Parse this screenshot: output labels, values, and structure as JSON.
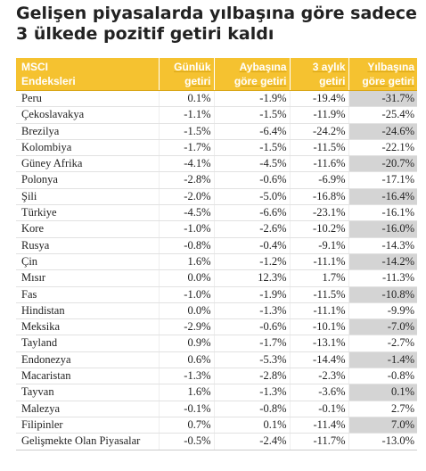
{
  "title": {
    "line1": "Gelişen piyasalarda yılbaşına göre sadece",
    "line2": "3 ülkede pozitif getiri kaldı"
  },
  "table": {
    "headers": [
      [
        "MSCI",
        "Endeksleri"
      ],
      [
        "Günlük",
        "getiri"
      ],
      [
        "Aybaşına",
        "göre getiri"
      ],
      [
        "3 aylık",
        "getiri"
      ],
      [
        "Yılbaşına",
        "göre getiri"
      ]
    ],
    "rows": [
      [
        "Peru",
        "0.1%",
        "-1.9%",
        "-19.4%",
        "-31.7%"
      ],
      [
        "Çekoslavakya",
        "-1.1%",
        "-1.5%",
        "-11.9%",
        "-25.4%"
      ],
      [
        "Brezilya",
        "-1.5%",
        "-6.4%",
        "-24.2%",
        "-24.6%"
      ],
      [
        "Kolombiya",
        "-1.7%",
        "-1.5%",
        "-11.5%",
        "-22.1%"
      ],
      [
        "Güney Afrika",
        "-4.1%",
        "-4.5%",
        "-11.6%",
        "-20.7%"
      ],
      [
        "Polonya",
        "-2.8%",
        "-0.6%",
        "-6.9%",
        "-17.1%"
      ],
      [
        "Şili",
        "-2.0%",
        "-5.0%",
        "-16.8%",
        "-16.4%"
      ],
      [
        "Türkiye",
        "-4.5%",
        "-6.6%",
        "-23.1%",
        "-16.1%"
      ],
      [
        "Kore",
        "-1.0%",
        "-2.6%",
        "-10.2%",
        "-16.0%"
      ],
      [
        "Rusya",
        "-0.8%",
        "-0.4%",
        "-9.1%",
        "-14.3%"
      ],
      [
        "Çin",
        "1.6%",
        "-1.2%",
        "-11.1%",
        "-14.2%"
      ],
      [
        "Mısır",
        "0.0%",
        "12.3%",
        "1.7%",
        "-11.3%"
      ],
      [
        "Fas",
        "-1.0%",
        "-1.9%",
        "-11.5%",
        "-10.8%"
      ],
      [
        "Hindistan",
        "0.0%",
        "-1.3%",
        "-11.1%",
        "-9.9%"
      ],
      [
        "Meksika",
        "-2.9%",
        "-0.6%",
        "-10.1%",
        "-7.0%"
      ],
      [
        "Tayland",
        "0.9%",
        "-1.7%",
        "-13.1%",
        "-2.7%"
      ],
      [
        "Endonezya",
        "0.6%",
        "-5.3%",
        "-14.4%",
        "-1.4%"
      ],
      [
        "Macaristan",
        "-1.3%",
        "-2.8%",
        "-2.3%",
        "-0.8%"
      ],
      [
        "Tayvan",
        "1.6%",
        "-1.3%",
        "-3.6%",
        "0.1%"
      ],
      [
        "Malezya",
        "-0.1%",
        "-0.8%",
        "-0.1%",
        "2.7%"
      ],
      [
        "Filipinler",
        "0.7%",
        "0.1%",
        "-11.4%",
        "7.0%"
      ],
      [
        "Gelişmekte Olan Piyasalar",
        "-0.5%",
        "-2.4%",
        "-11.7%",
        "-13.0%"
      ]
    ],
    "highlighted_rows": [
      0,
      2,
      4,
      6,
      8,
      10,
      12,
      14,
      16,
      18,
      20
    ]
  },
  "colors": {
    "header_bg": "#f5c230",
    "header_text": "#ffffff",
    "highlight_cell": "#d4d4d4"
  }
}
